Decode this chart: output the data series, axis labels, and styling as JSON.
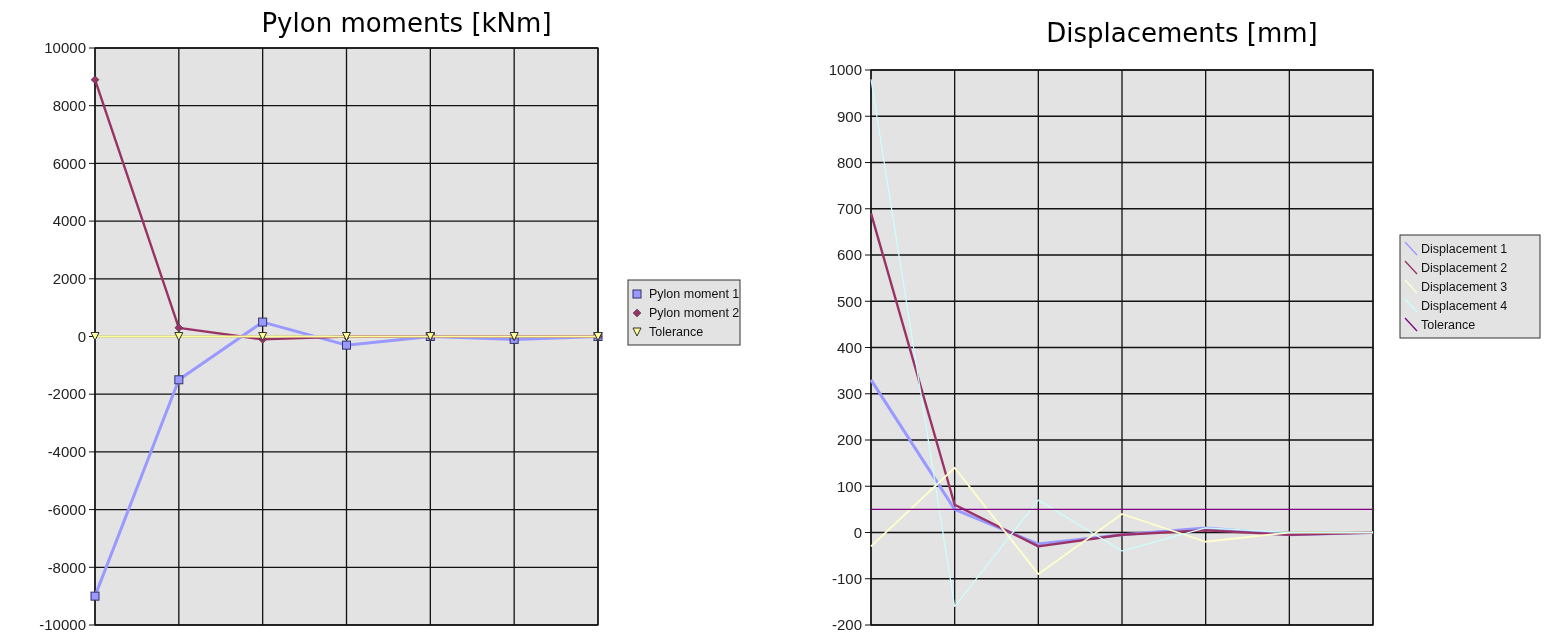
{
  "chart_data": [
    {
      "type": "line",
      "title": "Pylon moments [kNm]",
      "categories": [
        null,
        null,
        null,
        null,
        null,
        null,
        null
      ],
      "ylim": [
        -10000,
        10000
      ],
      "yticks": [
        -10000,
        -8000,
        -6000,
        -4000,
        -2000,
        0,
        2000,
        4000,
        6000,
        8000,
        10000
      ],
      "grid": true,
      "legend": "right",
      "series": [
        {
          "name": "Pylon moment 1",
          "color": "#9999ff",
          "marker": "square",
          "values": [
            -9000,
            -1500,
            500,
            -300,
            0,
            -100,
            0
          ]
        },
        {
          "name": "Pylon moment 2",
          "color": "#993366",
          "marker": "diamond",
          "values": [
            8900,
            300,
            -100,
            0,
            0,
            0,
            0
          ]
        },
        {
          "name": "Tolerance",
          "color": "#ffff99",
          "marker": "triangle",
          "values": [
            0,
            0,
            0,
            0,
            0,
            0,
            0
          ]
        }
      ]
    },
    {
      "type": "line",
      "title": "Displacements [mm]",
      "categories": [
        null,
        null,
        null,
        null,
        null,
        null,
        null
      ],
      "ylim": [
        -200,
        1000
      ],
      "yticks": [
        -200,
        -100,
        0,
        100,
        200,
        300,
        400,
        500,
        600,
        700,
        800,
        900,
        1000
      ],
      "grid": true,
      "legend": "right",
      "series": [
        {
          "name": "Displacement 1",
          "color": "#9999ff",
          "values": [
            330,
            50,
            -25,
            -5,
            10,
            -5,
            0
          ]
        },
        {
          "name": "Displacement 2",
          "color": "#993366",
          "values": [
            690,
            60,
            -30,
            -5,
            5,
            -5,
            0
          ]
        },
        {
          "name": "Displacement 3",
          "color": "#ffffcc",
          "values": [
            -30,
            140,
            -90,
            40,
            -20,
            0,
            0
          ]
        },
        {
          "name": "Displacement 4",
          "color": "#ccffff",
          "values": [
            980,
            -160,
            70,
            -40,
            10,
            0,
            0
          ]
        },
        {
          "name": "Tolerance",
          "color": "#800080",
          "values": [
            50,
            50,
            50,
            50,
            50,
            50,
            50
          ]
        }
      ]
    }
  ]
}
